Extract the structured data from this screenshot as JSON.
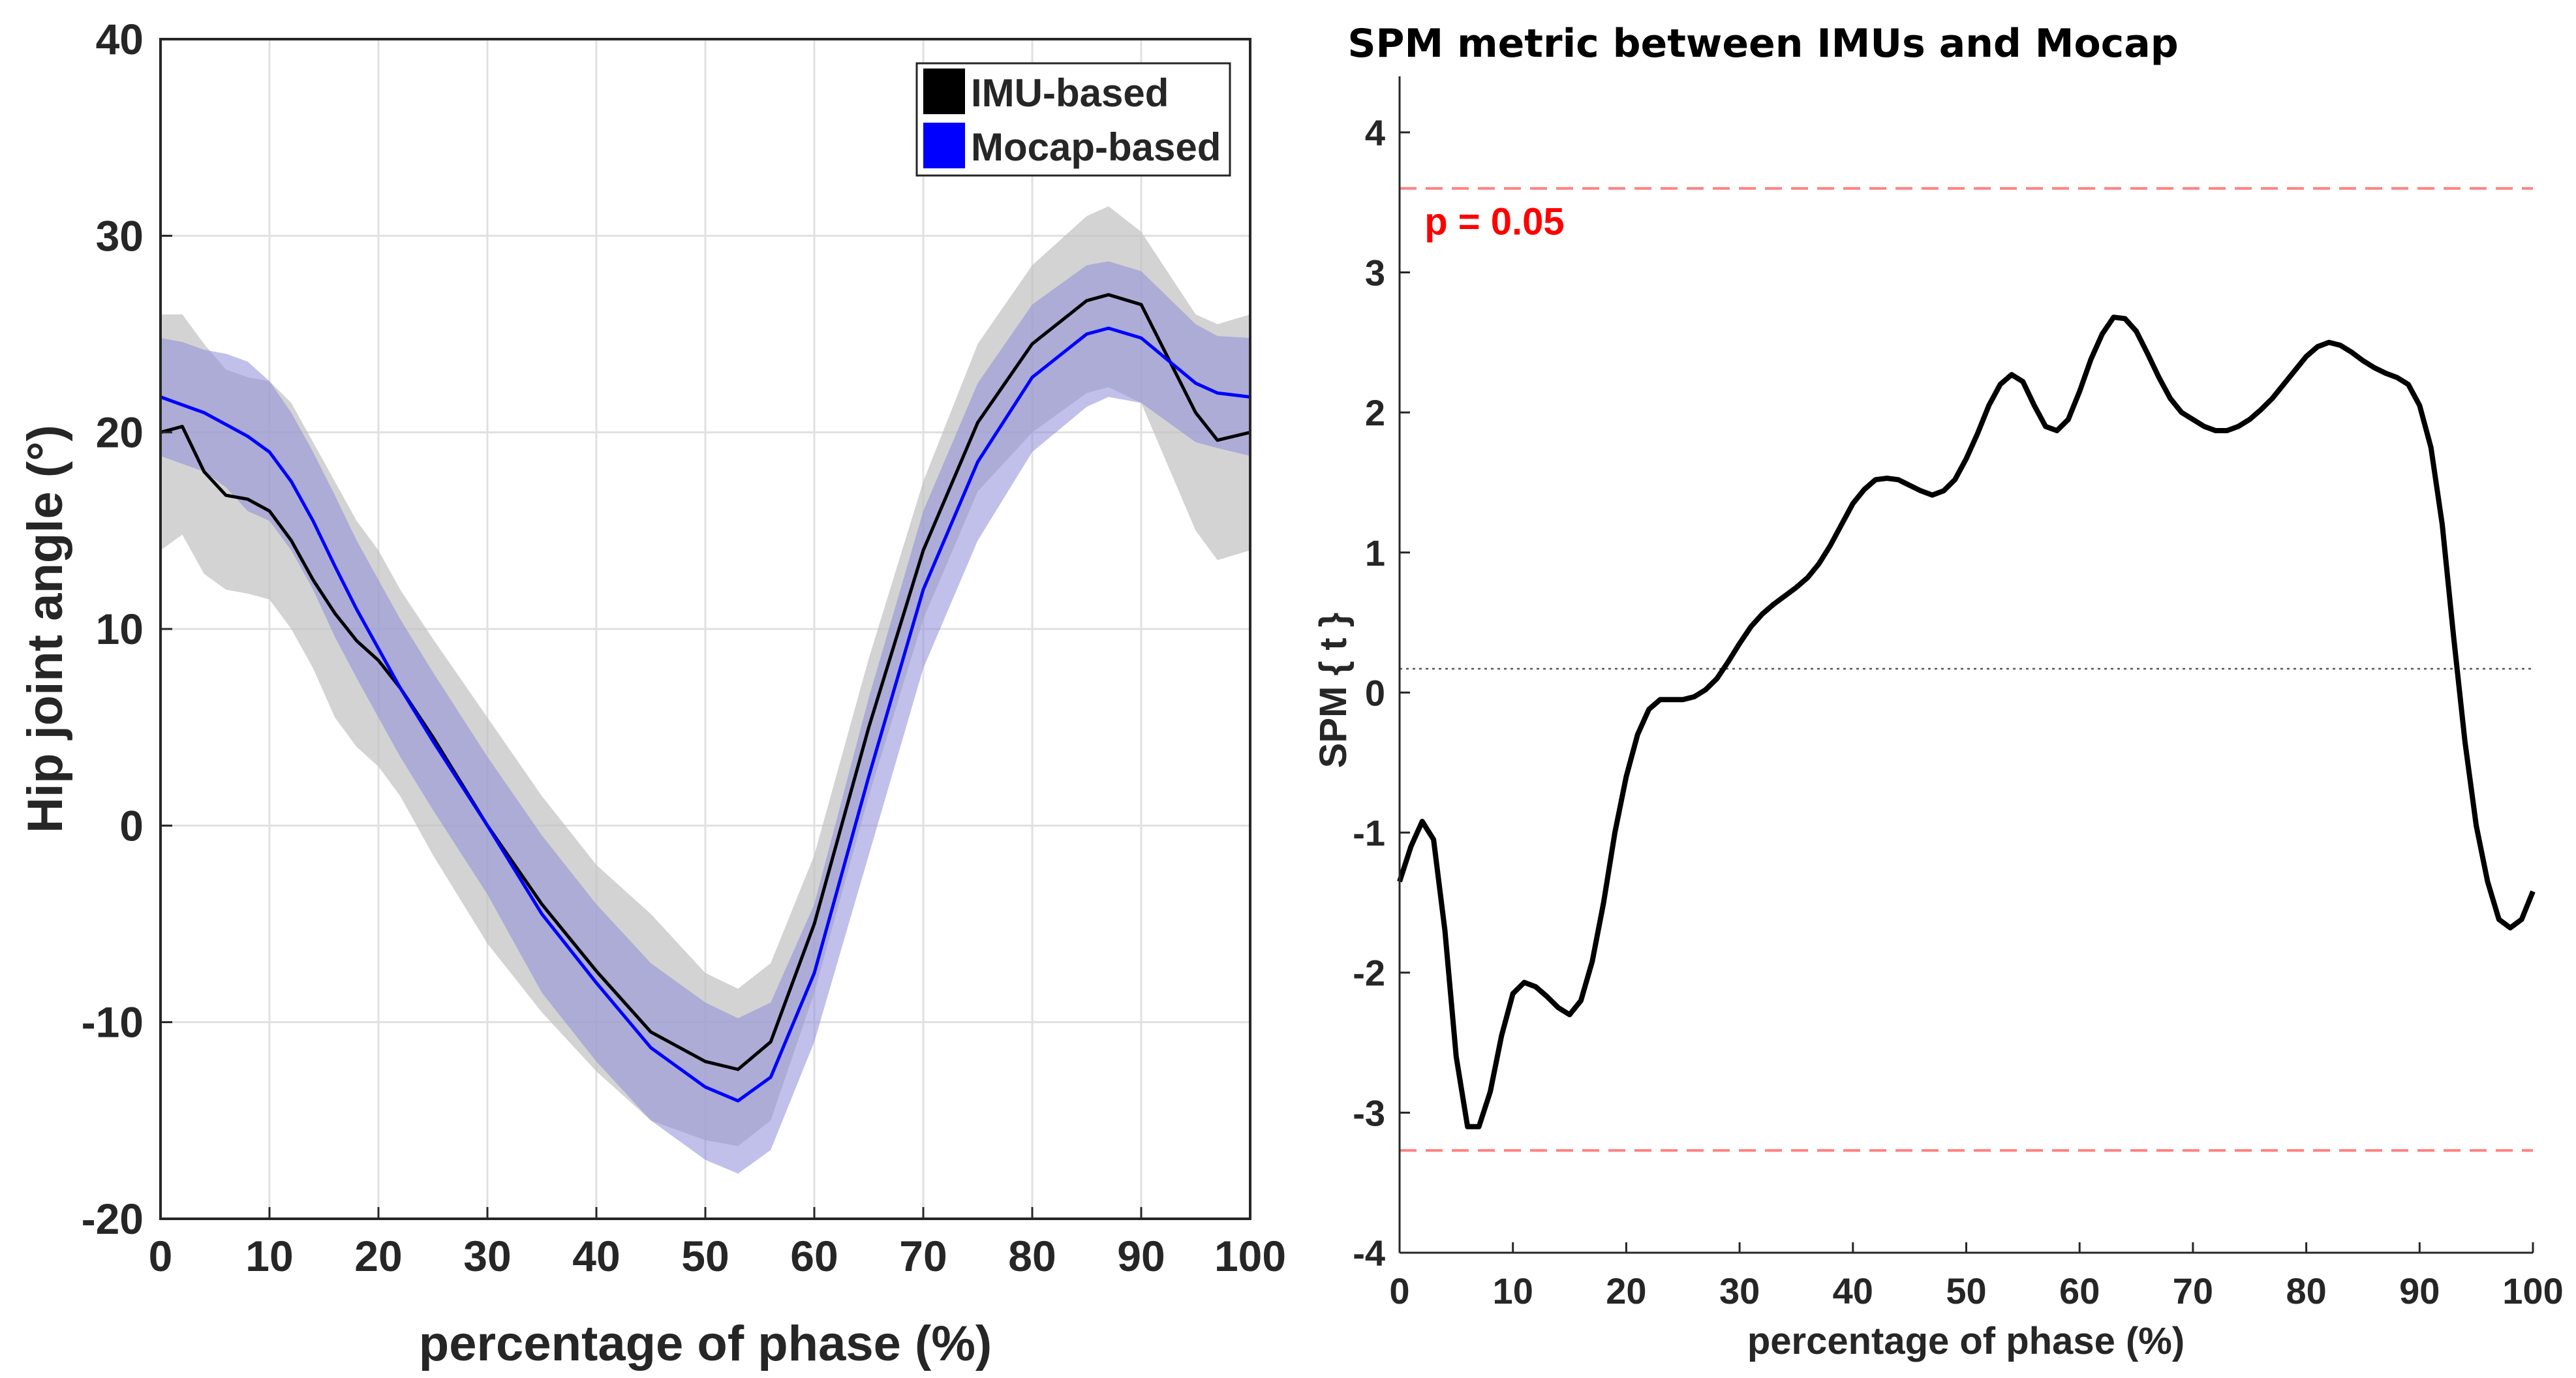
{
  "chart_data": [
    {
      "type": "line",
      "title": "",
      "xlabel": "percentage of phase (%)",
      "ylabel": "Hip joint angle (°)",
      "xlim": [
        0,
        100
      ],
      "ylim": [
        -20,
        40
      ],
      "xticks": [
        0,
        10,
        20,
        30,
        40,
        50,
        60,
        70,
        80,
        90,
        100
      ],
      "yticks": [
        -20,
        -10,
        0,
        10,
        20,
        30,
        40
      ],
      "grid": true,
      "legend": {
        "placement": "top-right",
        "entries": [
          "IMU-based",
          "Mocap-based"
        ]
      },
      "x": [
        0,
        2,
        4,
        6,
        8,
        10,
        12,
        14,
        16,
        18,
        20,
        22,
        25,
        30,
        35,
        40,
        45,
        50,
        53,
        56,
        60,
        65,
        70,
        75,
        80,
        85,
        87,
        90,
        95,
        97,
        100
      ],
      "series": [
        {
          "name": "IMU-based",
          "color": "#000000",
          "band_color": "#c0c0c0",
          "values": [
            20.0,
            20.3,
            18.0,
            16.8,
            16.6,
            16.0,
            14.5,
            12.5,
            10.8,
            9.4,
            8.4,
            7.0,
            4.5,
            0.0,
            -4.0,
            -7.4,
            -10.5,
            -12.0,
            -12.4,
            -11.0,
            -5.0,
            5.0,
            14.0,
            20.5,
            24.5,
            26.7,
            27.0,
            26.5,
            21.0,
            19.6,
            20.0
          ],
          "upper": [
            26.0,
            26.0,
            24.5,
            23.2,
            22.8,
            22.6,
            21.5,
            19.5,
            17.5,
            15.5,
            14.0,
            12.0,
            9.5,
            5.5,
            1.5,
            -2.0,
            -4.5,
            -7.5,
            -8.3,
            -7.0,
            -1.5,
            8.5,
            17.5,
            24.5,
            28.5,
            31.0,
            31.5,
            30.2,
            26.0,
            25.5,
            26.0
          ],
          "lower": [
            14.0,
            14.8,
            12.8,
            12.0,
            11.8,
            11.5,
            10.0,
            8.0,
            5.5,
            4.0,
            3.0,
            1.5,
            -1.5,
            -6.0,
            -9.5,
            -12.5,
            -15.0,
            -16.0,
            -16.3,
            -15.0,
            -8.5,
            1.5,
            10.5,
            17.0,
            20.0,
            22.0,
            22.3,
            21.5,
            15.0,
            13.5,
            14.0
          ]
        },
        {
          "name": "Mocap-based",
          "color": "#0000ff",
          "band_color": "#8c8cd8",
          "values": [
            21.8,
            21.4,
            21.0,
            20.4,
            19.8,
            19.0,
            17.5,
            15.5,
            13.2,
            11.0,
            9.0,
            7.0,
            4.3,
            0.0,
            -4.5,
            -8.0,
            -11.3,
            -13.3,
            -14.0,
            -12.8,
            -7.5,
            2.5,
            12.0,
            18.5,
            22.8,
            25.0,
            25.3,
            24.8,
            22.5,
            22.0,
            21.8
          ],
          "upper": [
            24.8,
            24.6,
            24.2,
            24.0,
            23.6,
            22.6,
            21.0,
            19.0,
            16.8,
            14.5,
            12.5,
            10.5,
            7.8,
            3.5,
            -0.5,
            -4.0,
            -7.0,
            -9.0,
            -9.8,
            -9.0,
            -4.0,
            6.5,
            16.0,
            22.5,
            26.5,
            28.5,
            28.7,
            28.2,
            25.5,
            24.9,
            24.8
          ],
          "lower": [
            18.8,
            18.4,
            18.0,
            17.2,
            16.0,
            15.5,
            14.0,
            12.0,
            9.6,
            7.5,
            5.5,
            3.5,
            0.8,
            -3.5,
            -8.5,
            -12.0,
            -15.0,
            -17.0,
            -17.7,
            -16.5,
            -11.0,
            -1.5,
            8.0,
            14.5,
            19.0,
            21.3,
            21.8,
            21.5,
            19.5,
            19.2,
            18.8
          ]
        }
      ]
    },
    {
      "type": "line",
      "title": "SPM metric between IMUs and Mocap",
      "xlabel": "percentage of phase (%)",
      "ylabel": "SPM { t }",
      "xlim": [
        0,
        100
      ],
      "ylim": [
        -4,
        4.4
      ],
      "xticks": [
        0,
        10,
        20,
        30,
        40,
        50,
        60,
        70,
        80,
        90,
        100
      ],
      "yticks": [
        -4,
        -3,
        -2,
        -1,
        0,
        1,
        2,
        3,
        4
      ],
      "grid": false,
      "threshold": {
        "upper": 3.6,
        "lower": -3.27,
        "color": "#ff8080",
        "label": "p = 0.05",
        "label_color": "#ff0000",
        "label_at": [
          2.2,
          3.27
        ]
      },
      "reference_line": {
        "y": 0.17,
        "color": "#555555"
      },
      "x": [
        0,
        1,
        2,
        3,
        4,
        5,
        6,
        7,
        8,
        9,
        10,
        11,
        12,
        13,
        14,
        15,
        16,
        17,
        18,
        19,
        20,
        21,
        22,
        23,
        24,
        25,
        26,
        27,
        28,
        29,
        30,
        31,
        32,
        33,
        34,
        35,
        36,
        37,
        38,
        39,
        40,
        41,
        42,
        43,
        44,
        45,
        46,
        47,
        48,
        49,
        50,
        51,
        52,
        53,
        54,
        55,
        56,
        57,
        58,
        59,
        60,
        61,
        62,
        63,
        64,
        65,
        66,
        67,
        68,
        69,
        70,
        71,
        72,
        73,
        74,
        75,
        76,
        77,
        78,
        79,
        80,
        81,
        82,
        83,
        84,
        85,
        86,
        87,
        88,
        89,
        90,
        91,
        92,
        93,
        94,
        95,
        96,
        97,
        98,
        99,
        100
      ],
      "series": [
        {
          "name": "SPM { t }",
          "color": "#000000",
          "values": [
            -1.35,
            -1.1,
            -0.92,
            -1.05,
            -1.7,
            -2.6,
            -3.1,
            -3.1,
            -2.85,
            -2.45,
            -2.15,
            -2.07,
            -2.1,
            -2.17,
            -2.25,
            -2.3,
            -2.2,
            -1.92,
            -1.5,
            -1.0,
            -0.6,
            -0.3,
            -0.12,
            -0.05,
            -0.05,
            -0.05,
            -0.03,
            0.02,
            0.1,
            0.22,
            0.35,
            0.47,
            0.56,
            0.63,
            0.69,
            0.75,
            0.82,
            0.92,
            1.05,
            1.2,
            1.35,
            1.45,
            1.52,
            1.53,
            1.52,
            1.48,
            1.44,
            1.41,
            1.44,
            1.52,
            1.67,
            1.85,
            2.05,
            2.2,
            2.27,
            2.22,
            2.05,
            1.9,
            1.87,
            1.95,
            2.15,
            2.38,
            2.56,
            2.68,
            2.67,
            2.58,
            2.42,
            2.25,
            2.1,
            2.0,
            1.95,
            1.9,
            1.87,
            1.87,
            1.9,
            1.95,
            2.02,
            2.1,
            2.2,
            2.3,
            2.4,
            2.47,
            2.5,
            2.48,
            2.43,
            2.37,
            2.32,
            2.28,
            2.25,
            2.2,
            2.05,
            1.75,
            1.2,
            0.4,
            -0.35,
            -0.95,
            -1.35,
            -1.62,
            -1.68,
            -1.62,
            -1.42
          ]
        }
      ]
    }
  ]
}
